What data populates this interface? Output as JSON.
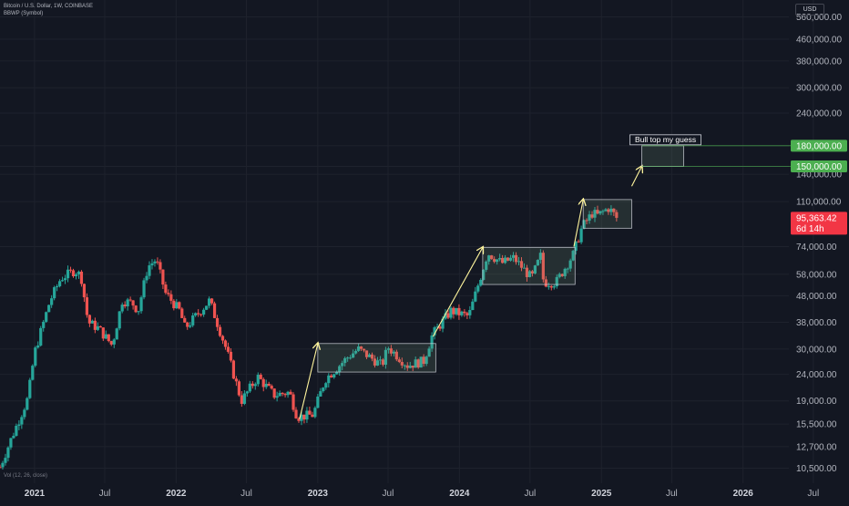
{
  "header": {
    "symbol": "Bitcoin / U.S. Dollar, 1W, COINBASE",
    "indicator": "BBWP (Symbol)"
  },
  "volume_label": "Vol (12, 26, close)",
  "currency": "USD",
  "price_axis": {
    "ticks": [
      "560,000.00",
      "460,000.00",
      "380,000.00",
      "300,000.00",
      "240,000.00",
      "180,000.00",
      "150,000.00",
      "140,000.00",
      "110,000.00",
      "74,000.00",
      "58,000.00",
      "48,000.00",
      "38,000.00",
      "30,000.00",
      "24,000.00",
      "19,000.00",
      "15,500.00",
      "12,700.00",
      "10,500.00"
    ]
  },
  "time_axis": {
    "ticks": [
      "2021",
      "Jul",
      "2022",
      "Jul",
      "2023",
      "Jul",
      "2024",
      "Jul",
      "2025",
      "Jul",
      "2026",
      "Jul"
    ]
  },
  "price_labels": {
    "current_price": "95,363.42",
    "countdown": "6d 14h",
    "level_high": "180,000.00",
    "level_low": "150,000.00"
  },
  "annotation": {
    "text": "Bull top my guess"
  },
  "colors": {
    "background": "#131722",
    "up": "#26a69a",
    "down": "#ef5350",
    "grid": "#1e222d",
    "arrow": "#fff59d",
    "box_fill": "rgba(120,160,130,0.18)",
    "box_border": "#d1d4dc",
    "level_green": "#4caf50",
    "price_red": "#f23645"
  },
  "chart_data": {
    "type": "candlestick",
    "scale": "log",
    "ylim": [
      9200,
      650000
    ],
    "xlim": [
      "2020-10-04",
      "2026-10-01"
    ],
    "interval": "1W",
    "last_price": 95363.42,
    "keypoints": [
      [
        "2020-10-04",
        10600
      ],
      [
        "2020-11-01",
        13500
      ],
      [
        "2020-12-15",
        19500
      ],
      [
        "2021-01-01",
        29000
      ],
      [
        "2021-02-10",
        46000
      ],
      [
        "2021-03-10",
        56000
      ],
      [
        "2021-04-15",
        60000
      ],
      [
        "2021-05-01",
        57000
      ],
      [
        "2021-05-19",
        38000
      ],
      [
        "2021-06-15",
        36000
      ],
      [
        "2021-07-20",
        31000
      ],
      [
        "2021-08-15",
        46000
      ],
      [
        "2021-09-10",
        45000
      ],
      [
        "2021-09-25",
        42000
      ],
      [
        "2021-10-20",
        62000
      ],
      [
        "2021-11-10",
        66000
      ],
      [
        "2021-12-05",
        49000
      ],
      [
        "2022-01-10",
        42000
      ],
      [
        "2022-01-24",
        36000
      ],
      [
        "2022-03-28",
        46000
      ],
      [
        "2022-05-10",
        30000
      ],
      [
        "2022-06-18",
        19000
      ],
      [
        "2022-07-30",
        23500
      ],
      [
        "2022-09-10",
        20000
      ],
      [
        "2022-10-20",
        20500
      ],
      [
        "2022-11-09",
        16500
      ],
      [
        "2022-12-20",
        16800
      ],
      [
        "2023-01-20",
        23000
      ],
      [
        "2023-03-20",
        28000
      ],
      [
        "2023-04-15",
        30000
      ],
      [
        "2023-06-15",
        26000
      ],
      [
        "2023-07-01",
        30500
      ],
      [
        "2023-08-20",
        26000
      ],
      [
        "2023-10-01",
        27000
      ],
      [
        "2023-10-23",
        34000
      ],
      [
        "2023-12-10",
        42000
      ],
      [
        "2024-01-25",
        40000
      ],
      [
        "2024-02-25",
        57000
      ],
      [
        "2024-03-14",
        70000
      ],
      [
        "2024-04-20",
        64000
      ],
      [
        "2024-05-20",
        67000
      ],
      [
        "2024-07-05",
        56000
      ],
      [
        "2024-07-28",
        68000
      ],
      [
        "2024-08-05",
        54000
      ],
      [
        "2024-09-06",
        54000
      ],
      [
        "2024-10-20",
        69000
      ],
      [
        "2024-11-12",
        88000
      ],
      [
        "2024-12-10",
        100000
      ],
      [
        "2024-12-20",
        97000
      ],
      [
        "2025-01-20",
        104000
      ],
      [
        "2025-02-10",
        95363.42
      ]
    ],
    "annotations": {
      "target_box": {
        "label": "Bull top my guess",
        "price_low": 150000,
        "price_high": 180000,
        "start": "2025-04-15",
        "end": "2025-08-01"
      },
      "ranges": [
        {
          "start": "2023-01-01",
          "end": "2023-11-01",
          "price_low": 24500,
          "price_high": 31500
        },
        {
          "start": "2024-03-01",
          "end": "2024-10-25",
          "price_low": 53000,
          "price_high": 73500
        },
        {
          "start": "2024-11-15",
          "end": "2025-03-20",
          "price_low": 87000,
          "price_high": 112000
        }
      ]
    }
  }
}
